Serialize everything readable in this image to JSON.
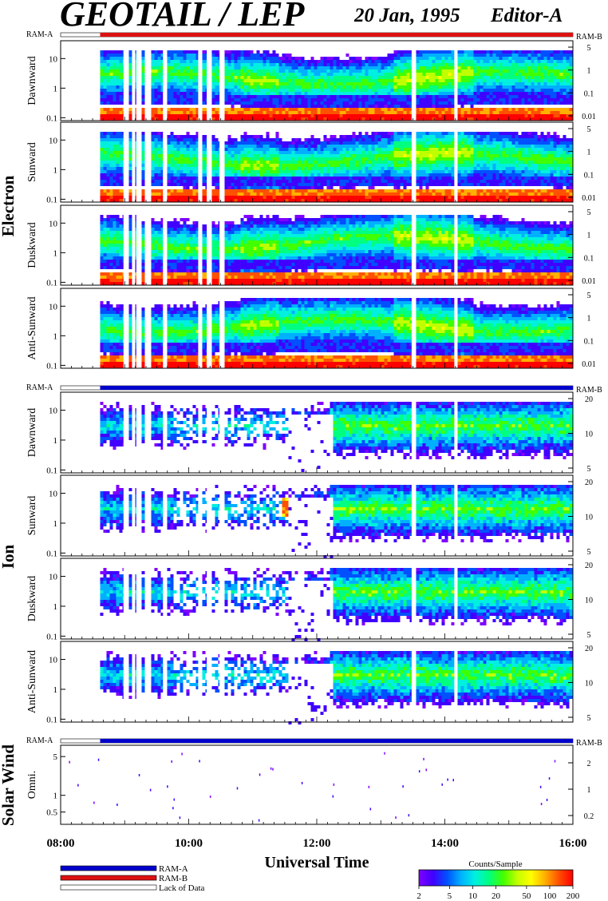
{
  "header": {
    "title": "GEOTAIL / LEP",
    "date": "20 Jan, 1995",
    "editor": "Editor-A"
  },
  "mode_bar_labels": {
    "left": "RAM-A",
    "right": "RAM-B"
  },
  "section_labels": {
    "electron": "Electron",
    "ion": "Ion",
    "solar_wind": "Solar Wind"
  },
  "colors": {
    "ram_a": "#0000cc",
    "ram_b": "#dd1111",
    "lack_of_data": "#ffffff",
    "colormap": [
      "#8000ff",
      "#4000ff",
      "#0050ff",
      "#00b0ff",
      "#00f0e0",
      "#00ff80",
      "#40ff00",
      "#c0ff00",
      "#ffff00",
      "#ffb000",
      "#ff5000",
      "#ff0000"
    ]
  },
  "chart_data": {
    "type": "heatmap",
    "x_axis": {
      "label": "Universal Time",
      "range": [
        "08:00",
        "16:00"
      ],
      "tick_labels": [
        "08:00",
        "10:00",
        "12:00",
        "14:00",
        "16:00"
      ]
    },
    "data_start": "08:37",
    "data_gaps": [
      "09:00",
      "09:08",
      "09:12",
      "09:20",
      "09:37",
      "10:10",
      "10:18",
      "10:30",
      "13:30",
      "14:10"
    ],
    "electron_panels": [
      {
        "label": "Dawnward",
        "ylim": [
          0.08,
          40
        ],
        "left_ticks": [
          "10",
          "1",
          "0.1"
        ],
        "right_ticks": [
          "5",
          "1",
          "0.1",
          "0.01"
        ],
        "mode": "RAM-B"
      },
      {
        "label": "Sunward",
        "ylim": [
          0.08,
          40
        ],
        "left_ticks": [
          "10",
          "1",
          "0.1"
        ],
        "right_ticks": [
          "5",
          "1",
          "0.1",
          "0.01"
        ],
        "mode": "RAM-B"
      },
      {
        "label": "Duskward",
        "ylim": [
          0.08,
          40
        ],
        "left_ticks": [
          "10",
          "1",
          "0.1"
        ],
        "right_ticks": [
          "5",
          "1",
          "0.1",
          "0.01"
        ],
        "mode": "RAM-B"
      },
      {
        "label": "Anti-Sunward",
        "ylim": [
          0.08,
          40
        ],
        "left_ticks": [
          "10",
          "1",
          "0.1"
        ],
        "right_ticks": [
          "5",
          "1",
          "0.1",
          "0.01"
        ],
        "mode": "RAM-B"
      }
    ],
    "ion_panels": [
      {
        "label": "Dawnward",
        "ylim": [
          0.08,
          40
        ],
        "left_ticks": [
          "10",
          "1",
          "0.1"
        ],
        "right_ticks": [
          "20",
          "10",
          "5"
        ],
        "mode": "RAM-A"
      },
      {
        "label": "Sunward",
        "ylim": [
          0.08,
          40
        ],
        "left_ticks": [
          "10",
          "1",
          "0.1"
        ],
        "right_ticks": [
          "20",
          "10",
          "5"
        ],
        "mode": "RAM-A"
      },
      {
        "label": "Duskward",
        "ylim": [
          0.08,
          40
        ],
        "left_ticks": [
          "10",
          "1",
          "0.1"
        ],
        "right_ticks": [
          "20",
          "10",
          "5"
        ],
        "mode": "RAM-A"
      },
      {
        "label": "Anti-Sunward",
        "ylim": [
          0.08,
          40
        ],
        "left_ticks": [
          "10",
          "1",
          "0.1"
        ],
        "right_ticks": [
          "20",
          "10",
          "5"
        ],
        "mode": "RAM-A"
      }
    ],
    "solar_wind_panel": {
      "label": "Omni.",
      "ylim": [
        0.3,
        8
      ],
      "left_ticks": [
        "5",
        "1",
        "0.5"
      ],
      "right_ticks": [
        "2",
        "1",
        "0.2"
      ],
      "mode": "RAM-A"
    },
    "legend": {
      "entries": [
        "RAM-A",
        "RAM-B",
        "Lack of Data"
      ]
    },
    "colorbar": {
      "title": "Counts/Sample",
      "tick_labels": [
        "2",
        "5",
        "10",
        "20",
        "50",
        "100",
        "200"
      ],
      "range": [
        2,
        200
      ],
      "scale": "log"
    }
  }
}
